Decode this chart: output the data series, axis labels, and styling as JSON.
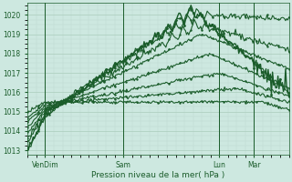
{
  "xlabel": "Pression niveau de la mer( hPa )",
  "ylim": [
    1012.8,
    1020.6
  ],
  "xlim": [
    0,
    120
  ],
  "yticks": [
    1013,
    1014,
    1015,
    1016,
    1017,
    1018,
    1019,
    1020
  ],
  "xtick_positions": [
    8,
    44,
    88,
    104
  ],
  "xtick_labels": [
    "VenDim",
    "Sam",
    "Lun",
    "Mar"
  ],
  "bg_color": "#cde8e0",
  "grid_major_color": "#aaccbb",
  "grid_minor_color": "#bdd8ce",
  "line_color": "#1a5c2a",
  "fig_bg": "#cde8e0"
}
